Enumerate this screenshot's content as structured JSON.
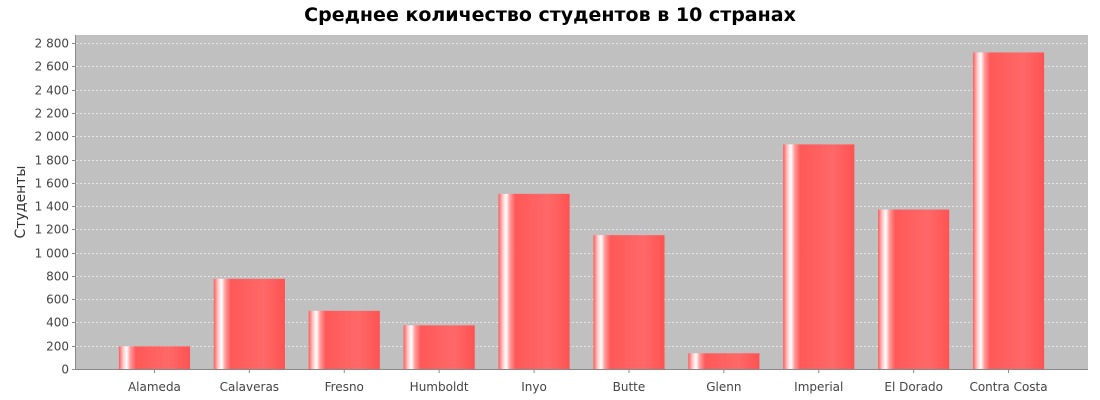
{
  "chart_data": {
    "type": "bar",
    "title": "Среднее количество студентов в 10 странах",
    "xlabel": "",
    "ylabel": "Студенты",
    "categories": [
      "Alameda",
      "Calaveras",
      "Fresno",
      "Humboldt",
      "Inyo",
      "Butte",
      "Glenn",
      "Imperial",
      "El Dorado",
      "Contra Costa"
    ],
    "values": [
      195,
      775,
      500,
      375,
      1505,
      1150,
      135,
      1930,
      1370,
      2720
    ],
    "ylim": [
      0,
      2870
    ],
    "yticks": [
      0,
      200,
      400,
      600,
      800,
      1000,
      1200,
      1400,
      1600,
      1800,
      2000,
      2200,
      2400,
      2600,
      2800
    ],
    "ytick_labels": [
      "0",
      "200",
      "400",
      "600",
      "800",
      "1 000",
      "1 200",
      "1 400",
      "1 600",
      "1 800",
      "2 000",
      "2 200",
      "2 400",
      "2 600",
      "2 800"
    ],
    "grid": true,
    "colors": {
      "bar": "#ff5555",
      "bar_highlight": "#ffffff",
      "plot_background": "#c0c0c0",
      "grid": "#e6e6e6",
      "axis": "#888888"
    }
  }
}
